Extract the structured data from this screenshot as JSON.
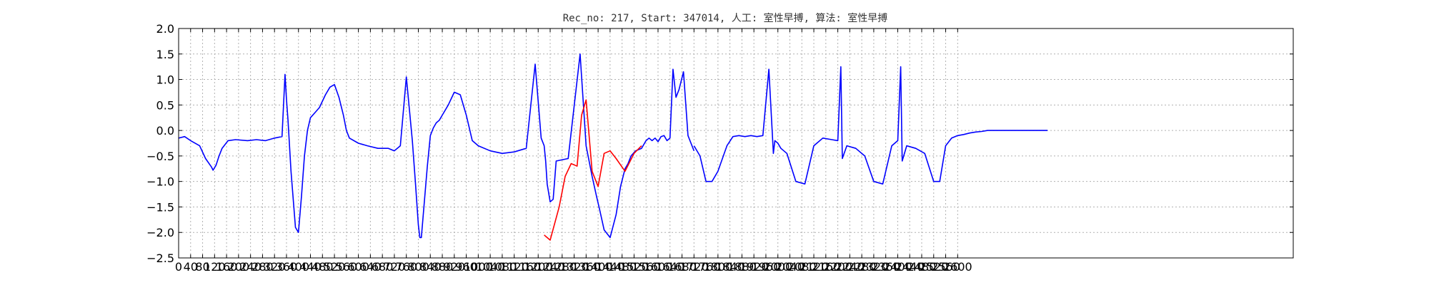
{
  "chart_data": {
    "type": "line",
    "title": "Rec_no: 217, Start: 347014, 人工: 室性早搏, 算法: 室性早搏",
    "xlabel": "",
    "ylabel": "",
    "xlim": [
      0,
      3720
    ],
    "ylim": [
      -2.5,
      2.0
    ],
    "grid": true,
    "x_ticks": [
      0,
      40,
      80,
      120,
      160,
      200,
      240,
      280,
      320,
      360,
      400,
      440,
      480,
      520,
      560,
      600,
      640,
      680,
      720,
      760,
      800,
      840,
      880,
      920,
      960,
      1000,
      1040,
      1080,
      1120,
      1160,
      1200,
      1240,
      1280,
      1320,
      1360,
      1400,
      1440,
      1480,
      1520,
      1560,
      1600,
      1640,
      1680,
      1720,
      1760,
      1800,
      1840,
      1880,
      1920,
      1960,
      2000,
      2040,
      2080,
      2120,
      2160,
      2200,
      2240,
      2280,
      2320,
      2360,
      2400,
      2440,
      2480,
      2520,
      2560,
      2600
    ],
    "x_tick_labels": [
      "0",
      "40",
      "80",
      "120",
      "160",
      "200",
      "240",
      "280",
      "320",
      "360",
      "400",
      "440",
      "480",
      "520",
      "560",
      "600",
      "640",
      "680",
      "720",
      "760",
      "800",
      "840",
      "880",
      "920",
      "960",
      "1000",
      "1040",
      "1080",
      "1120",
      "1160",
      "1200",
      "1240",
      "1280",
      "1320",
      "1360",
      "1400",
      "1440",
      "1480",
      "1520",
      "1560",
      "1600",
      "1640",
      "1680",
      "1720",
      "1760",
      "1800",
      "1840",
      "1880",
      "1920",
      "1960",
      "2000",
      "2040",
      "2080",
      "2120",
      "2160",
      "2200",
      "2240",
      "2280",
      "2320",
      "2360",
      "2400",
      "2440",
      "2480",
      "2520",
      "2560",
      "2600"
    ],
    "y_ticks": [
      2.0,
      1.5,
      1.0,
      0.5,
      0.0,
      -0.5,
      -1.0,
      -1.5,
      -2.0,
      -2.5
    ],
    "y_tick_labels": [
      "2.0",
      "1.5",
      "1.0",
      "0.5",
      "0.0",
      "−0.5",
      "−1.0",
      "−1.5",
      "−2.0",
      "−2.5"
    ],
    "series": [
      {
        "color": "#0000ff",
        "x": [
          0,
          20,
          40,
          70,
          90,
          110,
          115,
          125,
          135,
          145,
          165,
          190,
          230,
          260,
          290,
          320,
          345,
          355,
          360,
          365,
          375,
          390,
          400,
          410,
          420,
          430,
          440,
          455,
          470,
          490,
          505,
          520,
          535,
          550,
          560,
          570,
          600,
          630,
          665,
          700,
          720,
          740,
          760,
          780,
          790,
          800,
          805,
          810,
          820,
          830,
          840,
          850,
          860,
          870,
          880,
          900,
          920,
          940,
          960,
          980,
          1000,
          1040,
          1080,
          1120,
          1160,
          1190,
          1210,
          1220,
          1225,
          1230,
          1240,
          1250,
          1260,
          1300,
          1340,
          1360,
          1380,
          1395,
          1405,
          1420,
          1440,
          1460,
          1475,
          1490,
          1500,
          1510,
          1525,
          1545,
          1560,
          1570,
          1580,
          1590,
          1600,
          1610,
          1620,
          1630,
          1640,
          1650,
          1660,
          1670,
          1685,
          1700,
          1720
        ],
        "y": [
          -0.15,
          -0.12,
          -0.2,
          -0.3,
          -0.55,
          -0.72,
          -0.78,
          -0.68,
          -0.5,
          -0.35,
          -0.2,
          -0.18,
          -0.2,
          -0.18,
          -0.2,
          -0.15,
          -0.12,
          1.1,
          0.6,
          0.2,
          -0.8,
          -1.9,
          -2.0,
          -1.3,
          -0.5,
          0.0,
          0.25,
          0.35,
          0.45,
          0.7,
          0.85,
          0.9,
          0.65,
          0.3,
          0.0,
          -0.15,
          -0.25,
          -0.3,
          -0.35,
          -0.35,
          -0.4,
          -0.3,
          1.05,
          -0.2,
          -1.0,
          -1.85,
          -2.1,
          -2.1,
          -1.4,
          -0.7,
          -0.1,
          0.05,
          0.15,
          0.2,
          0.3,
          0.5,
          0.75,
          0.7,
          0.3,
          -0.2,
          -0.3,
          -0.4,
          -0.45,
          -0.42,
          -0.35,
          1.3,
          -0.15,
          -0.3,
          -0.6,
          -1.05,
          -1.4,
          -1.35,
          -0.6,
          -0.55,
          1.5,
          -0.3,
          -0.9,
          -1.3,
          -1.55,
          -1.95,
          -2.1,
          -1.65,
          -1.1,
          -0.75,
          -0.65,
          -0.5,
          -0.4,
          -0.35,
          -0.2,
          -0.15,
          -0.2,
          -0.15,
          -0.22,
          -0.12,
          -0.1,
          -0.2,
          -0.15,
          1.2,
          0.65,
          0.8,
          1.15,
          -0.1,
          -0.4
        ]
      },
      {
        "color": "#ff0000",
        "x": [
          1220,
          1240,
          1270,
          1290,
          1310,
          1330,
          1345,
          1360,
          1370,
          1380,
          1400,
          1420,
          1440,
          1460,
          1490,
          1520,
          1545
        ],
        "y": [
          -2.05,
          -2.15,
          -1.5,
          -0.9,
          -0.65,
          -0.7,
          0.3,
          0.6,
          -0.1,
          -0.8,
          -1.1,
          -0.45,
          -0.4,
          -0.55,
          -0.8,
          -0.45,
          -0.3
        ]
      },
      {
        "color": "#0000ff",
        "x": [
          1720,
          1740,
          1760,
          1780,
          1800,
          1830,
          1850,
          1870,
          1890,
          1910,
          1930,
          1950,
          1970,
          1985,
          1990,
          2000,
          2010,
          2030,
          2060,
          2090,
          2120,
          2150,
          2180,
          2200,
          2210,
          2215,
          2230,
          2260,
          2290,
          2320,
          2350,
          2380,
          2400,
          2410,
          2415,
          2430,
          2460,
          2490,
          2520,
          2540,
          2560,
          2580,
          2600,
          2620,
          2640,
          2660,
          2680,
          2700,
          2720,
          2740,
          2760,
          2780,
          2800,
          2820,
          2840,
          2860,
          2880,
          2900
        ],
        "y": [
          -0.3,
          -0.5,
          -1.0,
          -1.0,
          -0.8,
          -0.3,
          -0.12,
          -0.1,
          -0.12,
          -0.1,
          -0.12,
          -0.1,
          1.2,
          -0.45,
          -0.2,
          -0.25,
          -0.35,
          -0.45,
          -1.0,
          -1.05,
          -0.3,
          -0.15,
          -0.18,
          -0.2,
          1.25,
          -0.55,
          -0.3,
          -0.35,
          -0.5,
          -1.0,
          -1.05,
          -0.3,
          -0.2,
          1.25,
          -0.6,
          -0.3,
          -0.35,
          -0.45,
          -1.0,
          -1.0,
          -0.3,
          -0.15,
          -0.1,
          -0.08,
          -0.05,
          -0.03,
          -0.02,
          0.0,
          0.0,
          0.0,
          0.0,
          0.0,
          0.0,
          0.0,
          0.0,
          0.0,
          0.0,
          0.0
        ]
      }
    ]
  }
}
